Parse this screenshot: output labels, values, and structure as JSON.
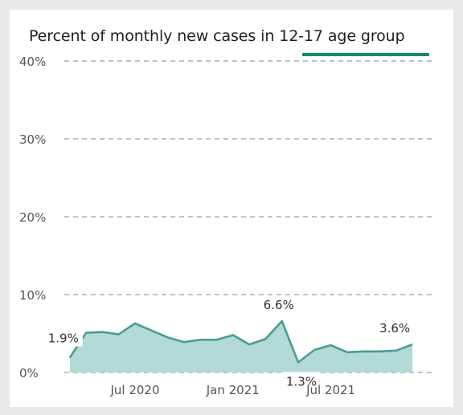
{
  "chart_data": {
    "type": "area",
    "title": "Percent of monthly new cases in 12-17 age group",
    "xlabel": "",
    "ylabel": "",
    "ylim": [
      0,
      40
    ],
    "y_ticks": [
      0,
      10,
      20,
      30,
      40
    ],
    "y_tick_labels": [
      "0%",
      "10%",
      "20%",
      "30%",
      "40%"
    ],
    "x_tick_labels": [
      "Jul 2020",
      "Jan 2021",
      "Jul 2021"
    ],
    "x_tick_months": [
      "2020-07",
      "2021-01",
      "2021-07"
    ],
    "grid": true,
    "legend": "none",
    "x": [
      "2020-03",
      "2020-04",
      "2020-05",
      "2020-06",
      "2020-07",
      "2020-08",
      "2020-09",
      "2020-10",
      "2020-11",
      "2020-12",
      "2021-01",
      "2021-02",
      "2021-03",
      "2021-04",
      "2021-05",
      "2021-06",
      "2021-07",
      "2021-08",
      "2021-09",
      "2021-10",
      "2021-11",
      "2021-12"
    ],
    "values": [
      1.9,
      5.1,
      5.2,
      4.9,
      6.3,
      5.4,
      4.5,
      3.9,
      4.2,
      4.2,
      4.8,
      3.6,
      4.3,
      6.6,
      1.3,
      2.9,
      3.5,
      2.6,
      2.7,
      2.7,
      2.8,
      3.6
    ],
    "data_labels": [
      {
        "text": "1.9%",
        "index": 0
      },
      {
        "text": "6.6%",
        "index": 13
      },
      {
        "text": "1.3%",
        "index": 14
      },
      {
        "text": "3.6%",
        "index": 21
      }
    ],
    "colors": {
      "line": "#4a9c95",
      "fill": "#b3dad6",
      "grid": "#9e9e9e",
      "accent": "#13876e"
    }
  }
}
